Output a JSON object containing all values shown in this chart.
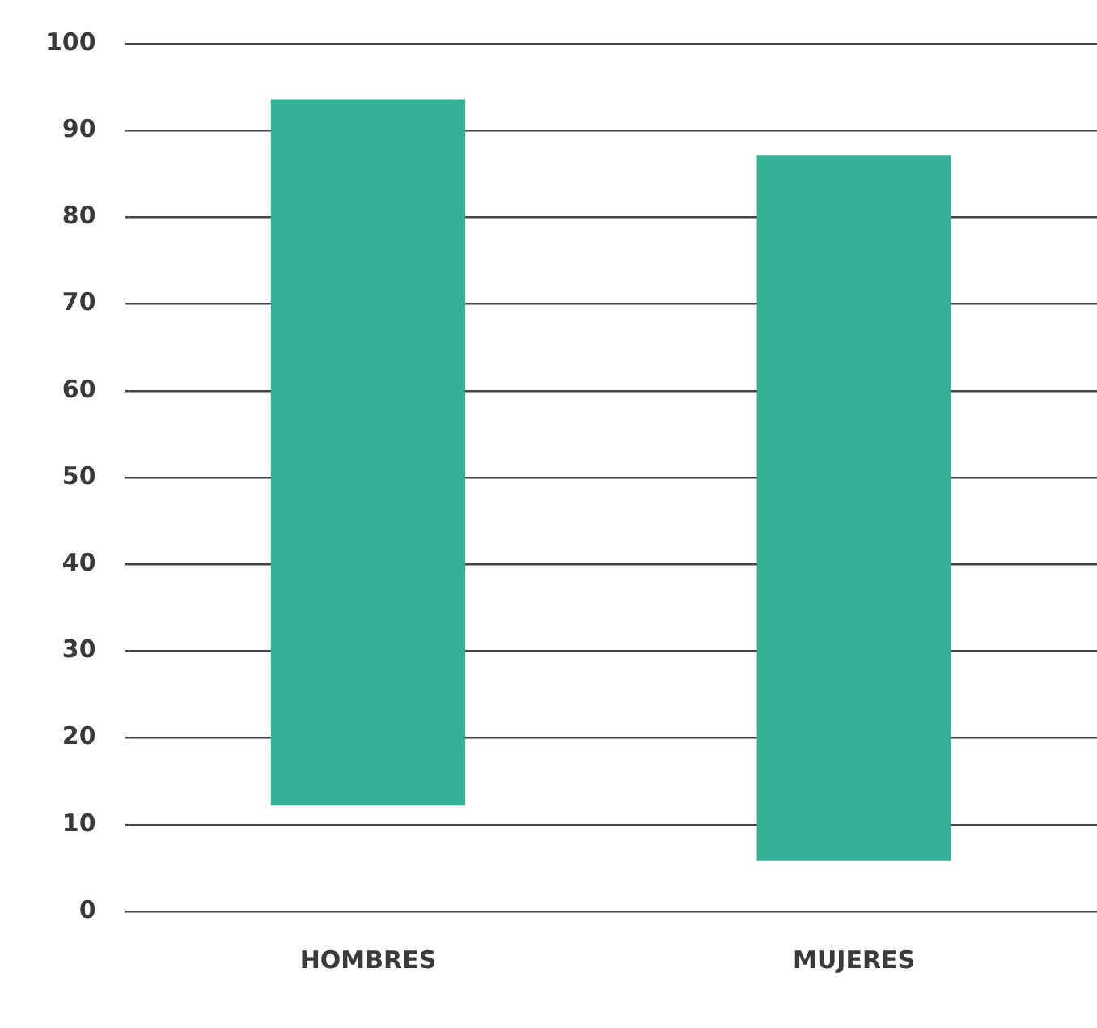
{
  "chart_data": {
    "type": "bar",
    "categories": [
      "HOMBRES",
      "MUJERES"
    ],
    "base": [
      12.2,
      5.8
    ],
    "values": [
      81.4,
      81.3
    ],
    "color": "#34b094",
    "ylim": [
      0,
      100
    ],
    "yticks": [
      0,
      10,
      20,
      30,
      40,
      50,
      60,
      70,
      80,
      90,
      100
    ],
    "grid": "y",
    "legend": false
  }
}
